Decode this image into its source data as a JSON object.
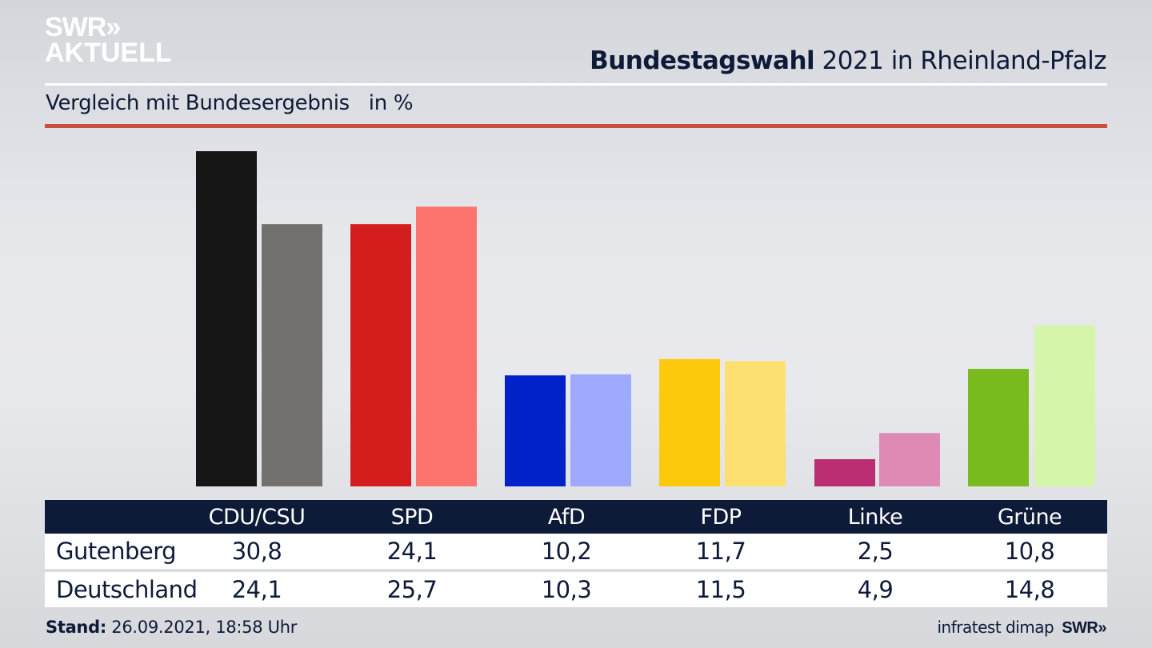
{
  "header": {
    "logo_line1": "SWR»",
    "logo_line2": "AKTUELL",
    "title_bold": "Bundestagswahl",
    "title_rest": " 2021 in Rheinland-Pfalz",
    "subtitle": "Vergleich mit Bundesergebnis   in %"
  },
  "chart_data": {
    "type": "bar",
    "title": "Bundestagswahl 2021 in Rheinland-Pfalz",
    "subtitle": "Vergleich mit Bundesergebnis in %",
    "xlabel": "",
    "ylabel": "in %",
    "categories": [
      "CDU/CSU",
      "SPD",
      "AfD",
      "FDP",
      "Linke",
      "Grüne"
    ],
    "series": [
      {
        "name": "Gutenberg",
        "values": [
          30.8,
          24.1,
          10.2,
          11.7,
          2.5,
          10.8
        ],
        "colors": [
          "#161616",
          "#d41e1e",
          "#0022c8",
          "#fdc90c",
          "#bb2e72",
          "#79bb1e"
        ]
      },
      {
        "name": "Deutschland",
        "values": [
          24.1,
          25.7,
          10.3,
          11.5,
          4.9,
          14.8
        ],
        "colors": [
          "#73716f",
          "#fd736d",
          "#9eaafd",
          "#fde070",
          "#df8ab5",
          "#d5f6aa"
        ]
      }
    ],
    "ylim": [
      0,
      32
    ],
    "grid": false,
    "legend": "table-below"
  },
  "table": {
    "headers": [
      "CDU/CSU",
      "SPD",
      "AfD",
      "FDP",
      "Linke",
      "Grüne"
    ],
    "rows": [
      {
        "label": "Gutenberg",
        "values": [
          "30,8",
          "24,1",
          "10,2",
          "11,7",
          "2,5",
          "10,8"
        ]
      },
      {
        "label": "Deutschland",
        "values": [
          "24,1",
          "25,7",
          "10,3",
          "11,5",
          "4,9",
          "14,8"
        ]
      }
    ]
  },
  "footer": {
    "stand_label": "Stand:",
    "stand_value": " 26.09.2021, 18:58 Uhr",
    "source": "infratest dimap",
    "source_logo": "SWR»"
  }
}
